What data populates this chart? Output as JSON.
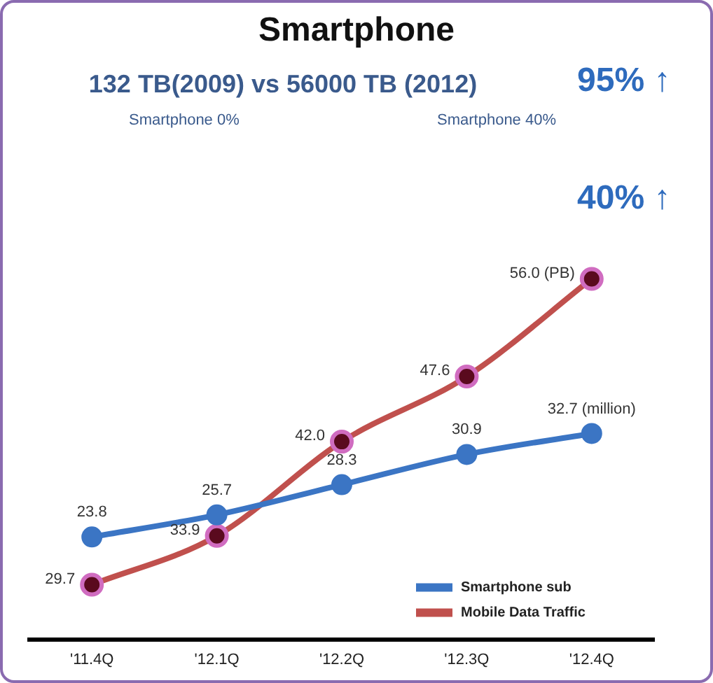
{
  "chart_data": {
    "type": "line",
    "title": "Smartphone",
    "subtitle": "132 TB(2009) vs 56000 TB (2012)",
    "categories": [
      "'11.4Q",
      "'12.1Q",
      "'12.2Q",
      "'12.3Q",
      "'12.4Q"
    ],
    "series": [
      {
        "name": "Smartphone sub",
        "color": "#3b75c4",
        "axis": "y2",
        "values": [
          23.8,
          25.7,
          28.3,
          30.9,
          32.7
        ],
        "value_labels": [
          "23.8",
          "25.7",
          "28.3",
          "30.9",
          "32.7 (million)"
        ]
      },
      {
        "name": "Mobile Data Traffic",
        "color": "#c0504d",
        "values": [
          29.7,
          33.9,
          42.0,
          47.6,
          56.0
        ],
        "value_labels": [
          "29.7",
          "33.9",
          "42.0",
          "47.6",
          "56.0 (PB)"
        ]
      }
    ],
    "annotations": [
      "Smartphone 0%",
      "Smartphone 40%",
      "95% ↑",
      "40% ↑"
    ],
    "legend": "bottom right",
    "marker": "circle",
    "line_style": "solid",
    "tick_labels": "x"
  }
}
